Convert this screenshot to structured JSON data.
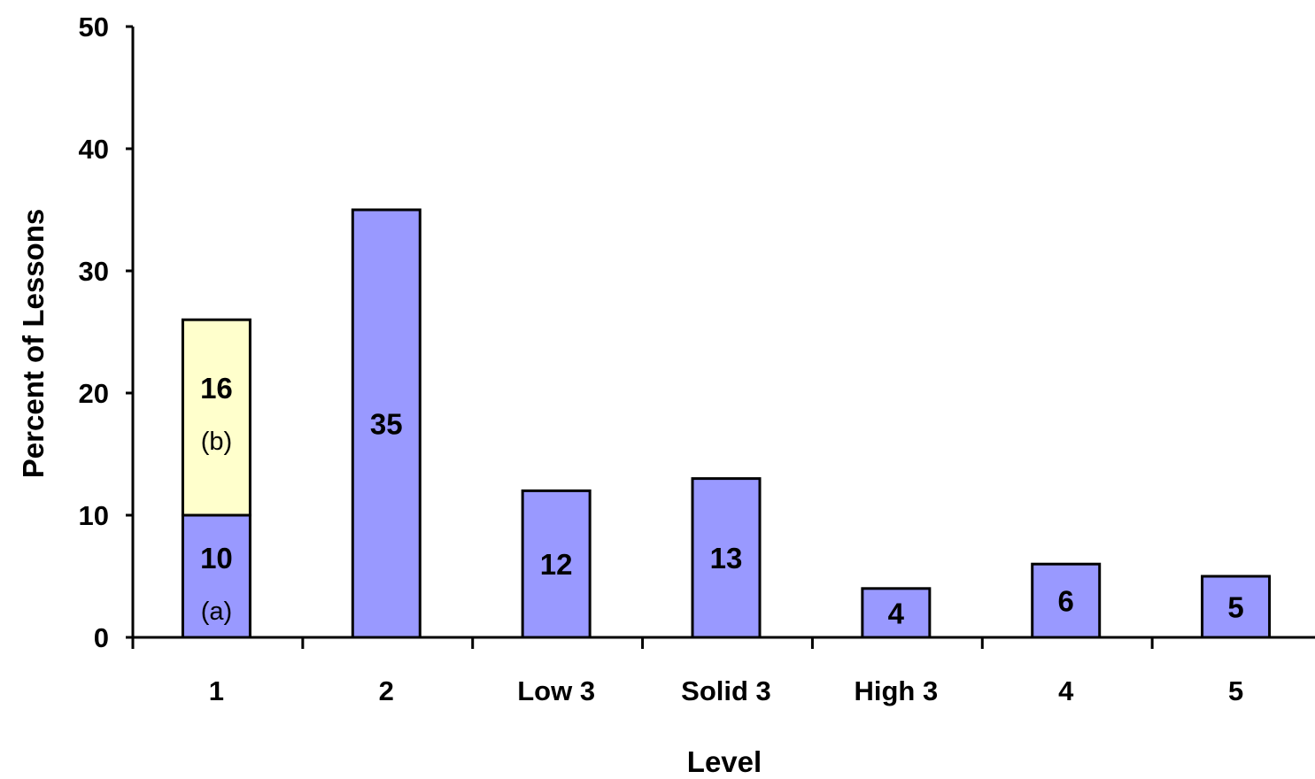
{
  "chart_data": {
    "type": "bar",
    "stacked": true,
    "categories": [
      "1",
      "2",
      "Low 3",
      "Solid 3",
      "High 3",
      "4",
      "5"
    ],
    "series": [
      {
        "values": [
          10,
          35,
          12,
          13,
          4,
          6,
          5
        ]
      },
      {
        "values": [
          16,
          0,
          0,
          0,
          0,
          0,
          0
        ]
      }
    ],
    "bar_labels": [
      [
        {
          "value_text": "10",
          "note": "(a)"
        },
        {
          "value_text": "35"
        },
        {
          "value_text": "12"
        },
        {
          "value_text": "13"
        },
        {
          "value_text": "4"
        },
        {
          "value_text": "6"
        },
        {
          "value_text": "5"
        }
      ],
      [
        {
          "value_text": "16",
          "note": "(b)"
        },
        null,
        null,
        null,
        null,
        null,
        null
      ]
    ],
    "colors": [
      "#9999ff",
      "#ffffcc"
    ],
    "xlabel": "Level",
    "ylabel": "Percent of Lessons",
    "ylim": [
      0,
      50
    ],
    "yticks": [
      0,
      10,
      20,
      30,
      40,
      50
    ],
    "grid": false,
    "legend": "none"
  }
}
